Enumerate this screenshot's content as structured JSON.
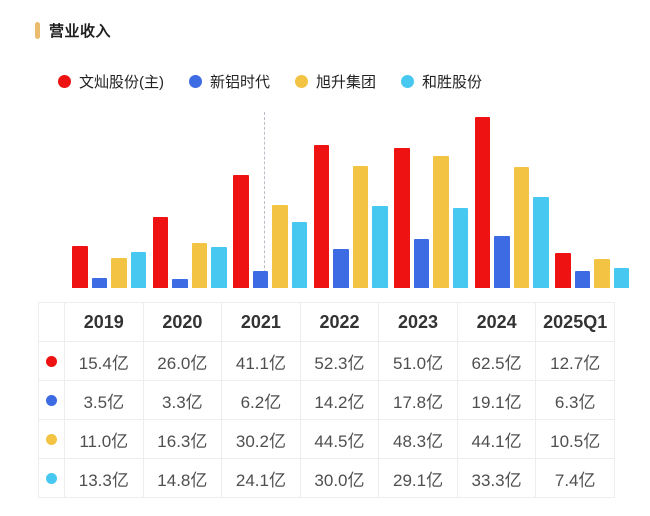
{
  "title": {
    "text": "营业收入",
    "accent_color": "#e9bd6d"
  },
  "legend": [
    {
      "key": "wencan",
      "label": "文灿股份(主)",
      "color": "#ee1212"
    },
    {
      "key": "xinlv",
      "label": "新铝时代",
      "color": "#3d6be3"
    },
    {
      "key": "xusheng",
      "label": "旭升集团",
      "color": "#f3c343"
    },
    {
      "key": "hesheng",
      "label": "和胜股份",
      "color": "#47c8f1"
    }
  ],
  "chart_data": {
    "type": "bar",
    "title": "营业收入",
    "categories": [
      "2019",
      "2020",
      "2021",
      "2022",
      "2023",
      "2024",
      "2025Q1"
    ],
    "series": [
      {
        "key": "wencan",
        "name": "文灿股份(主)",
        "color": "#ee1212",
        "values": [
          15.4,
          26.0,
          41.1,
          52.3,
          51.0,
          62.5,
          12.7
        ]
      },
      {
        "key": "xinlv",
        "name": "新铝时代",
        "color": "#3d6be3",
        "values": [
          3.5,
          3.3,
          6.2,
          14.2,
          17.8,
          19.1,
          6.3
        ]
      },
      {
        "key": "xusheng",
        "name": "旭升集团",
        "color": "#f3c343",
        "values": [
          11.0,
          16.3,
          30.2,
          44.5,
          48.3,
          44.1,
          10.5
        ]
      },
      {
        "key": "hesheng",
        "name": "和胜股份",
        "color": "#47c8f1",
        "values": [
          13.3,
          14.8,
          24.1,
          30.0,
          29.1,
          33.3,
          7.4
        ]
      }
    ],
    "unit": "亿",
    "ylim": [
      0,
      65
    ],
    "grid": false,
    "xlabel": "",
    "ylabel": "",
    "legend_position": "top",
    "annotations": [
      {
        "type": "dashed-vline",
        "color": "#b9bec7",
        "position": "2021, between 新铝时代 and 旭升集团 bars"
      }
    ]
  },
  "table": {
    "corner": "",
    "columns": [
      "2019",
      "2020",
      "2021",
      "2022",
      "2023",
      "2024",
      "2025Q1"
    ],
    "rows": [
      {
        "key": "wencan",
        "color": "#ee1212",
        "cells": [
          "15.4亿",
          "26.0亿",
          "41.1亿",
          "52.3亿",
          "51.0亿",
          "62.5亿",
          "12.7亿"
        ]
      },
      {
        "key": "xinlv",
        "color": "#3d6be3",
        "cells": [
          "3.5亿",
          "3.3亿",
          "6.2亿",
          "14.2亿",
          "17.8亿",
          "19.1亿",
          "6.3亿"
        ]
      },
      {
        "key": "xusheng",
        "color": "#f3c343",
        "cells": [
          "11.0亿",
          "16.3亿",
          "30.2亿",
          "44.5亿",
          "48.3亿",
          "44.1亿",
          "10.5亿"
        ]
      },
      {
        "key": "hesheng",
        "color": "#47c8f1",
        "cells": [
          "13.3亿",
          "14.8亿",
          "24.1亿",
          "30.0亿",
          "29.1亿",
          "33.3亿",
          "7.4亿"
        ]
      }
    ]
  }
}
